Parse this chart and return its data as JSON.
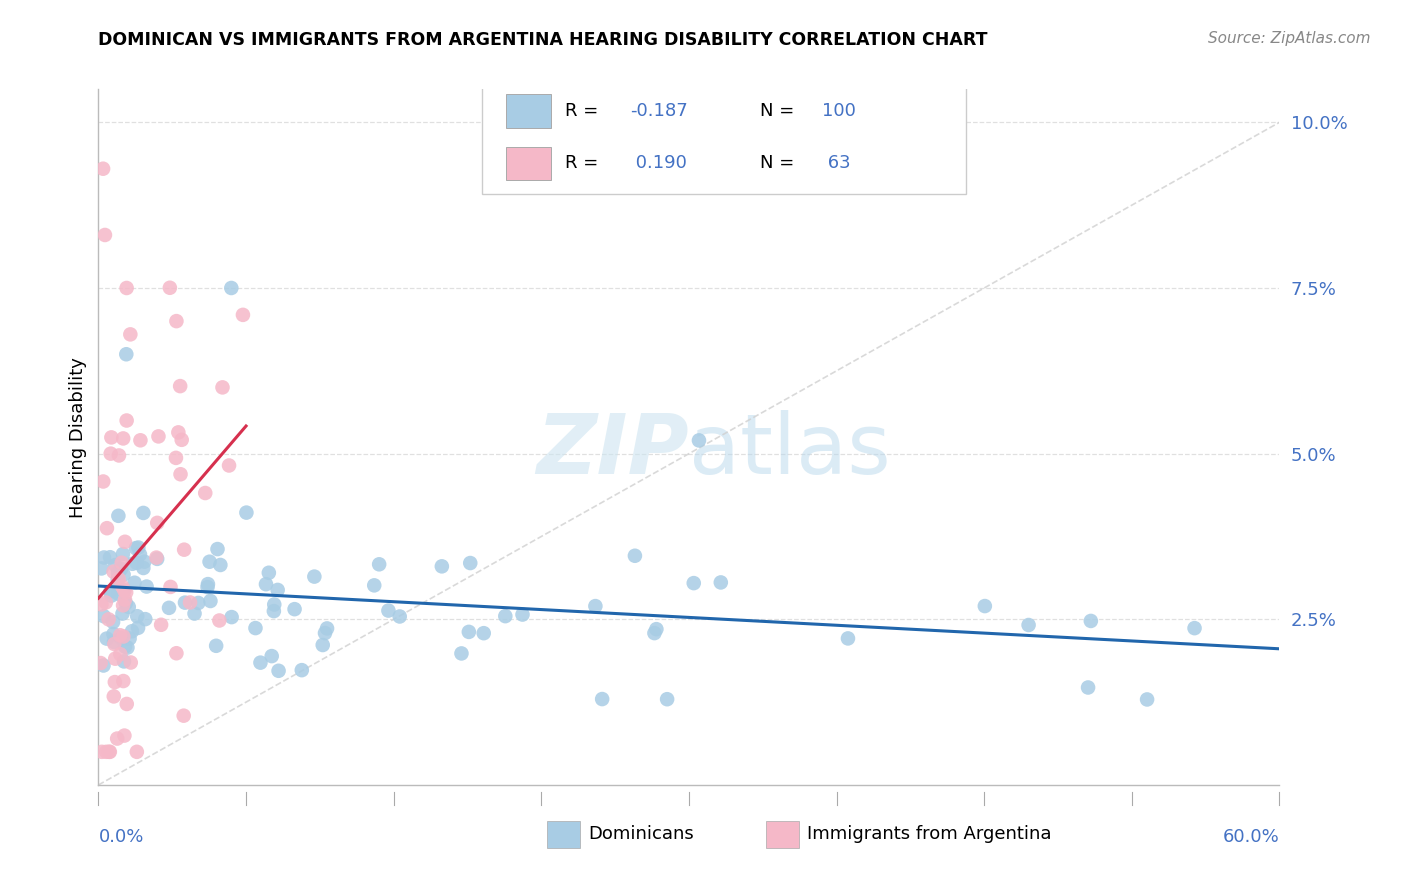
{
  "title": "DOMINICAN VS IMMIGRANTS FROM ARGENTINA HEARING DISABILITY CORRELATION CHART",
  "source": "Source: ZipAtlas.com",
  "ylabel": "Hearing Disability",
  "xlim": [
    0.0,
    0.6
  ],
  "ylim": [
    0.0,
    0.105
  ],
  "watermark": "ZIPatlas",
  "legend1_R": "-0.187",
  "legend1_N": "100",
  "legend2_R": "0.190",
  "legend2_N": "63",
  "blue_color": "#a8cce4",
  "pink_color": "#f5b8c8",
  "blue_line_color": "#2166ac",
  "pink_line_color": "#d6304e",
  "dashed_line_color": "#d0d0d0",
  "grid_color": "#e0e0e0",
  "label_color": "#4472c4",
  "title_fontsize": 13,
  "source_fontsize": 11,
  "axis_label_fontsize": 12,
  "legend_fontsize": 13,
  "ytick_color": "#4472c4"
}
